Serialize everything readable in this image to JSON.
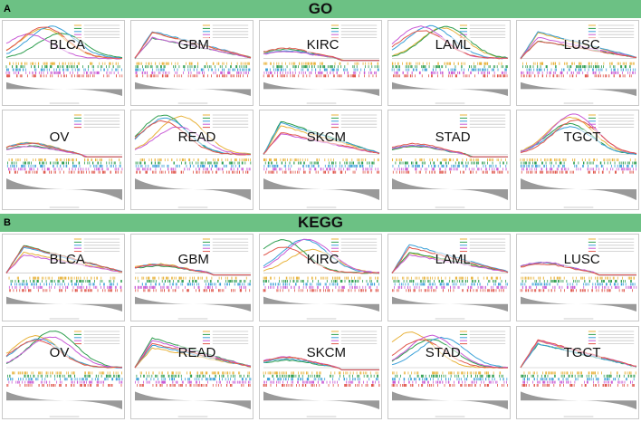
{
  "sections": [
    {
      "label": "A",
      "title": "GO",
      "cancers": [
        "BLCA",
        "GBM",
        "KIRC",
        "LAML",
        "LUSC",
        "OV",
        "READ",
        "SKCM",
        "STAD",
        "TGCT"
      ]
    },
    {
      "label": "B",
      "title": "KEGG",
      "cancers": [
        "BLCA",
        "GBM",
        "KIRC",
        "LAML",
        "LUSC",
        "OV",
        "READ",
        "SKCM",
        "STAD",
        "TGCT"
      ]
    }
  ],
  "colors": {
    "banner": "#6cc184",
    "curves": [
      "#e8b23a",
      "#2e9e4f",
      "#3aa0d8",
      "#c85ad6",
      "#e0574c",
      "#8fbf2f"
    ]
  }
}
